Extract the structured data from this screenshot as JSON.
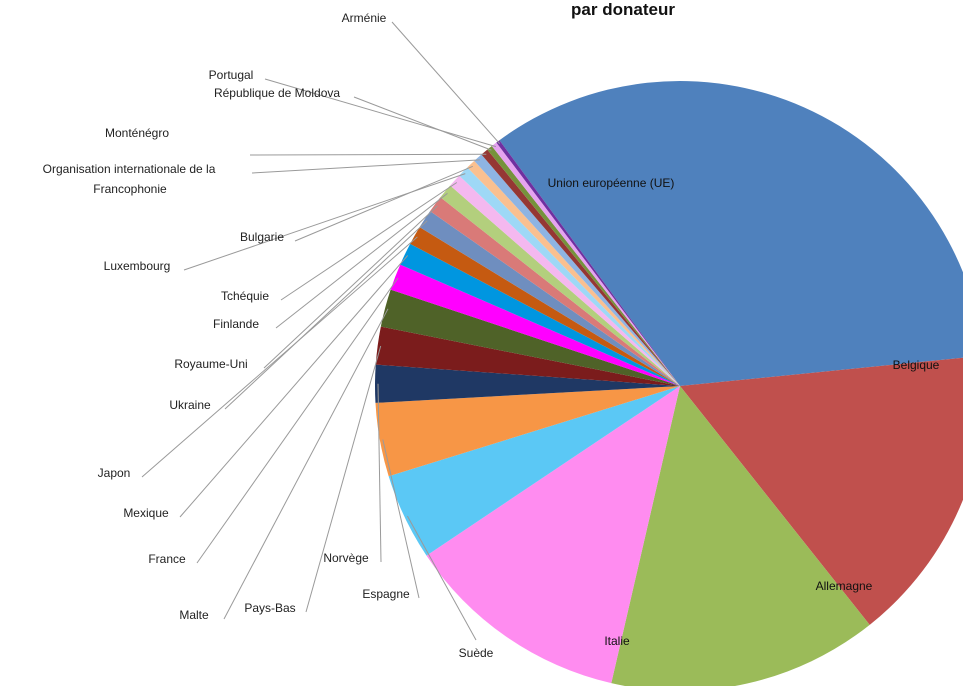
{
  "chart_data": {
    "type": "pie",
    "title": "par donateur",
    "slices": [
      {
        "label": "Union européenne (UE)",
        "value": 33.5,
        "color": "#4f81bd"
      },
      {
        "label": "Belgique",
        "value": 15.9,
        "color": "#c0504d"
      },
      {
        "label": "Allemagne",
        "value": 14.3,
        "color": "#9bbb59"
      },
      {
        "label": "Italie",
        "value": 12.0,
        "color": "#ff8cf0"
      },
      {
        "label": "Suède",
        "value": 4.6,
        "color": "#5bc8f5"
      },
      {
        "label": "Espagne",
        "value": 3.9,
        "color": "#f79646"
      },
      {
        "label": "Norvège",
        "value": 2.0,
        "color": "#1f3864"
      },
      {
        "label": "Pays-Bas",
        "value": 2.0,
        "color": "#7b1c1c"
      },
      {
        "label": "Malte",
        "value": 2.0,
        "color": "#4f6228"
      },
      {
        "label": "France",
        "value": 1.4,
        "color": "#ff00ff"
      },
      {
        "label": "Mexique",
        "value": 1.2,
        "color": "#0096e0"
      },
      {
        "label": "Japon",
        "value": 1.0,
        "color": "#c55a11"
      },
      {
        "label": "Ukraine",
        "value": 1.0,
        "color": "#6f8ebf"
      },
      {
        "label": "Royaume-Uni",
        "value": 0.9,
        "color": "#d97a78"
      },
      {
        "label": "Finlande",
        "value": 0.8,
        "color": "#b3cf7d"
      },
      {
        "label": "Tchéquie",
        "value": 0.7,
        "color": "#f4b8ef"
      },
      {
        "label": "Luxembourg",
        "value": 0.6,
        "color": "#9ed8f6"
      },
      {
        "label": "Bulgarie",
        "value": 0.5,
        "color": "#fac090"
      },
      {
        "label": "Organisation internationale de la Francophonie",
        "value": 0.5,
        "color": "#8eb4e3"
      },
      {
        "label": "Monténégro",
        "value": 0.4,
        "color": "#953734"
      },
      {
        "label": "République de Moldova",
        "value": 0.3,
        "color": "#76923c"
      },
      {
        "label": "Portugal",
        "value": 0.3,
        "color": "#e6a3f0"
      },
      {
        "label": "Arménie",
        "value": 0.2,
        "color": "#7030a0"
      }
    ]
  }
}
